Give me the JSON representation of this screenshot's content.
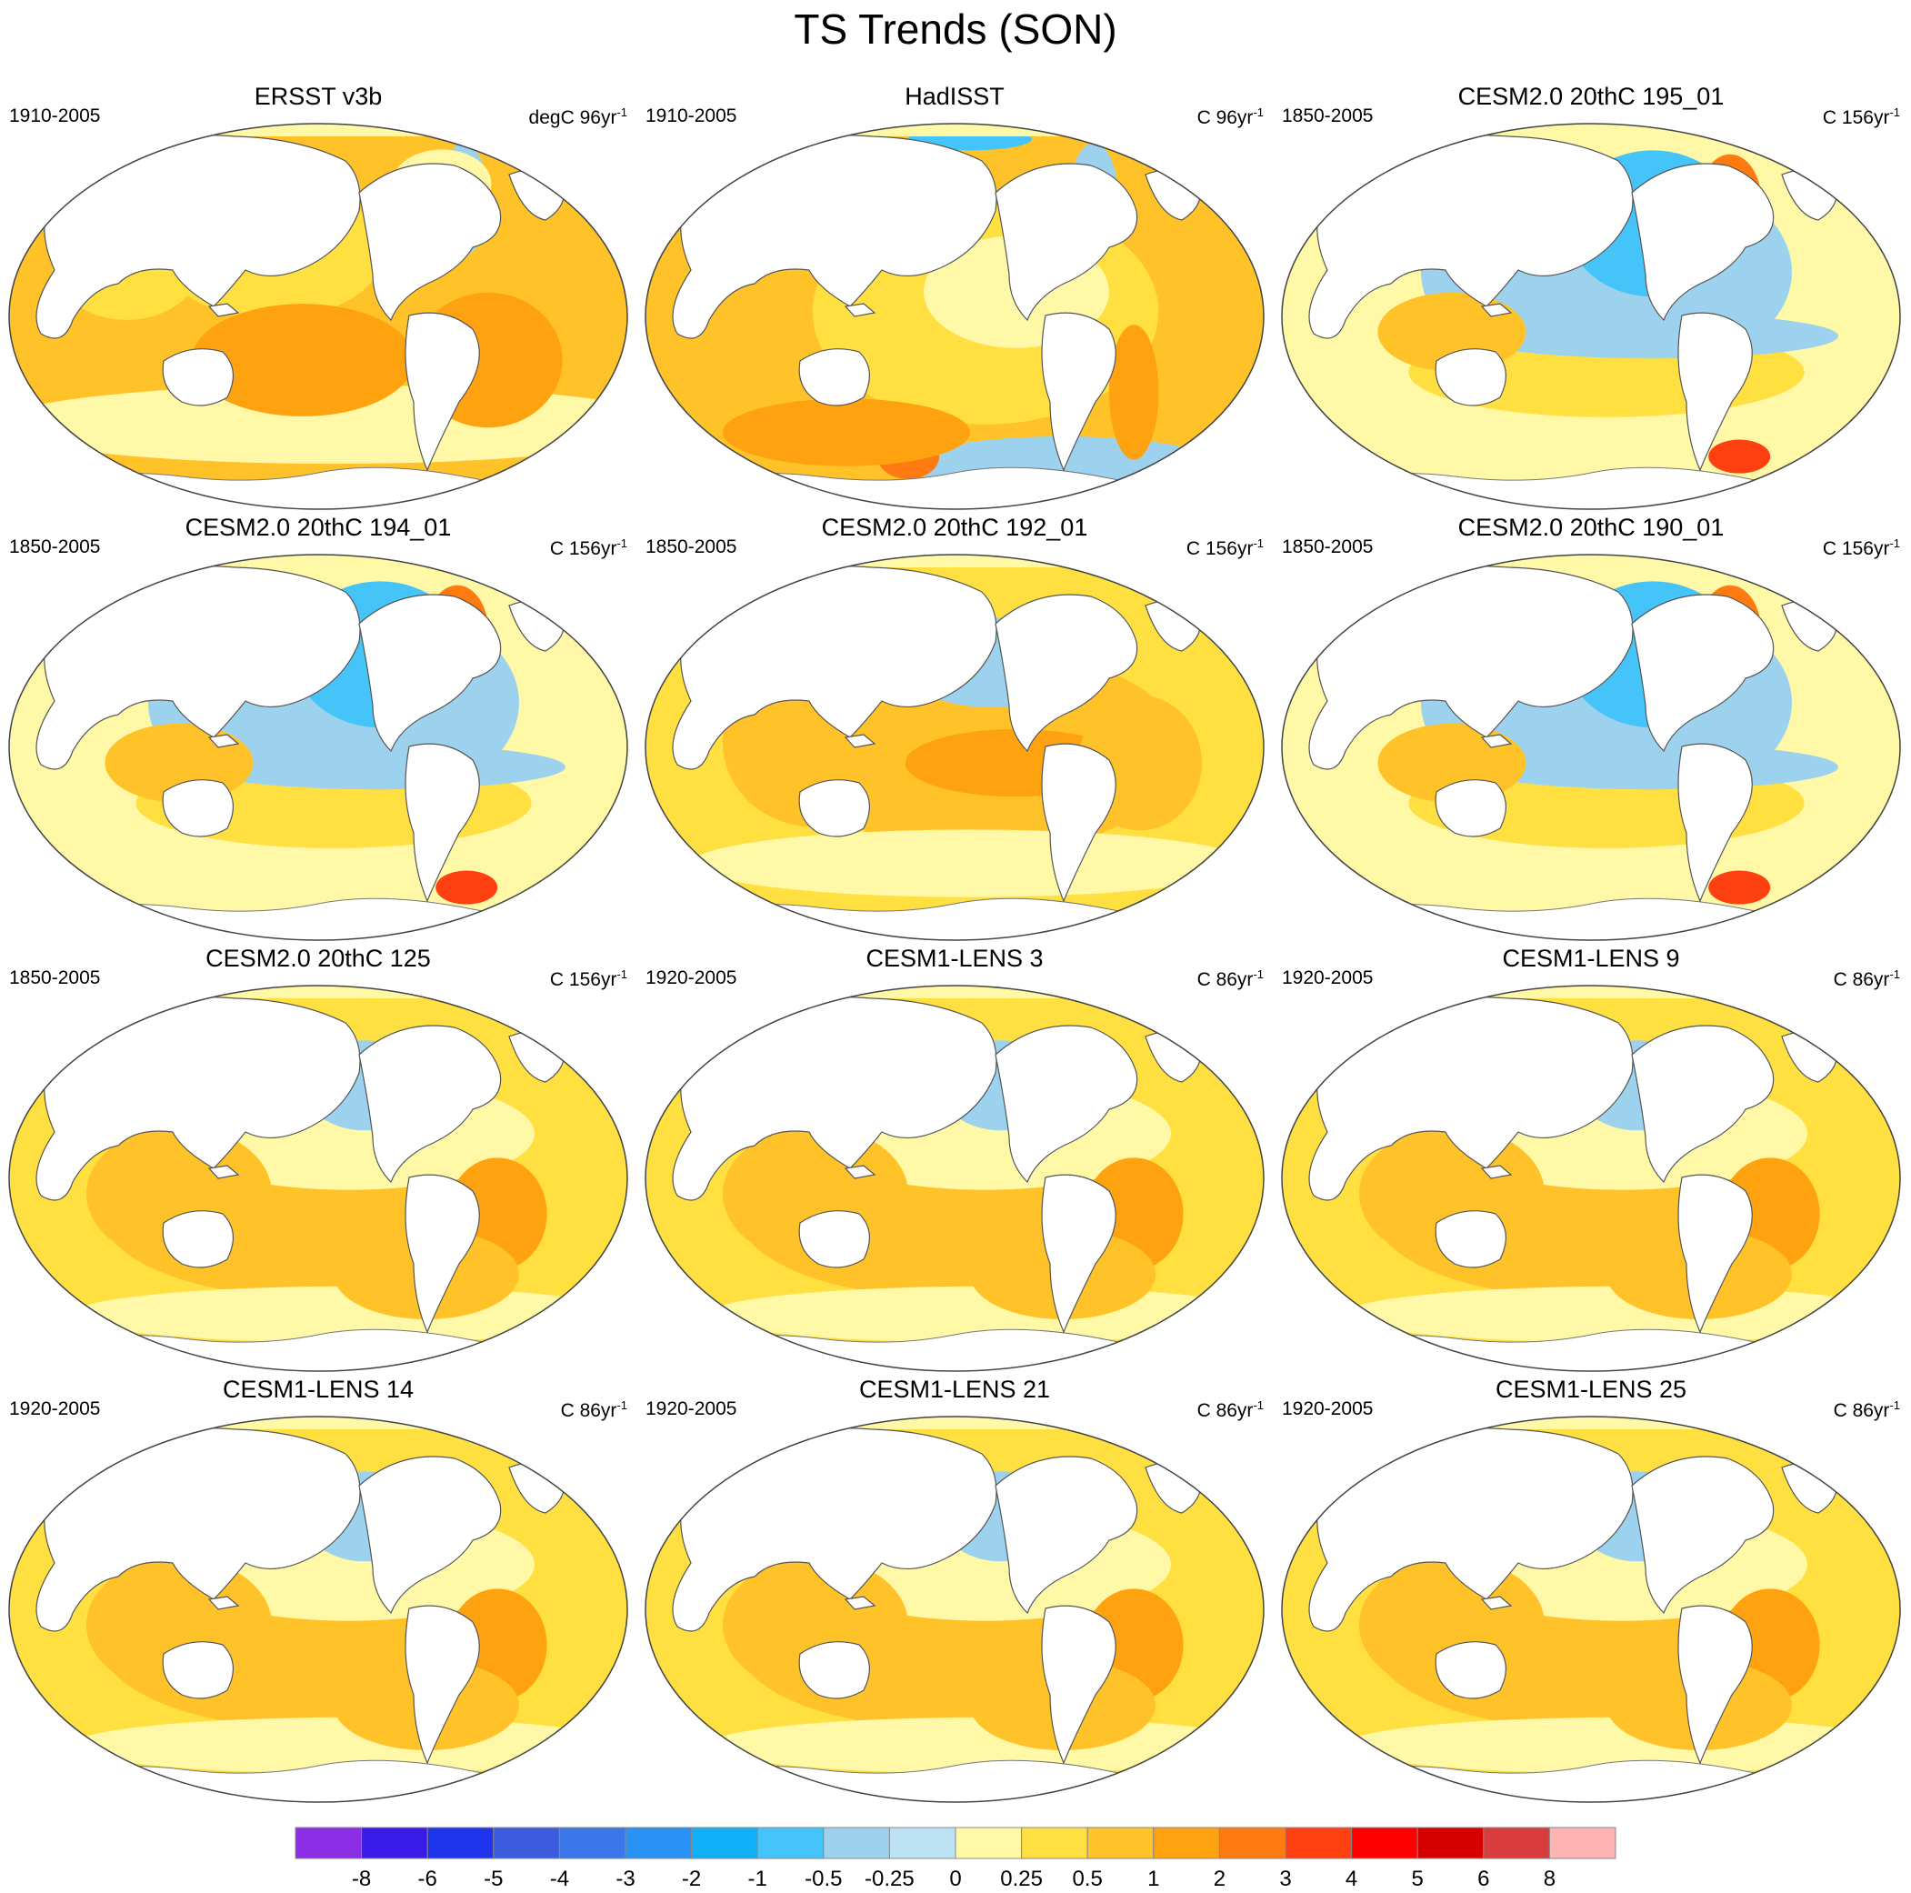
{
  "title": "TS Trends (SON)",
  "panels": [
    {
      "title": "ERSST v3b",
      "period": "1910-2005",
      "units": "degC 96yr",
      "units_exp": "-1",
      "scheme": "ersst"
    },
    {
      "title": "HadISST",
      "period": "1910-2005",
      "units": "C 96yr",
      "units_exp": "-1",
      "scheme": "hadisst"
    },
    {
      "title": "CESM2.0 20thC 195_01",
      "period": "1850-2005",
      "units": "C 156yr",
      "units_exp": "-1",
      "scheme": "cold"
    },
    {
      "title": "CESM2.0 20thC 194_01",
      "period": "1850-2005",
      "units": "C 156yr",
      "units_exp": "-1",
      "scheme": "cold"
    },
    {
      "title": "CESM2.0 20thC 192_01",
      "period": "1850-2005",
      "units": "C 156yr",
      "units_exp": "-1",
      "scheme": "warm"
    },
    {
      "title": "CESM2.0 20thC 190_01",
      "period": "1850-2005",
      "units": "C 156yr",
      "units_exp": "-1",
      "scheme": "cold"
    },
    {
      "title": "CESM2.0 20thC 125",
      "period": "1850-2005",
      "units": "C 156yr",
      "units_exp": "-1",
      "scheme": "mixed"
    },
    {
      "title": "CESM1-LENS 3",
      "period": "1920-2005",
      "units": "C 86yr",
      "units_exp": "-1",
      "scheme": "mixed"
    },
    {
      "title": "CESM1-LENS 9",
      "period": "1920-2005",
      "units": "C 86yr",
      "units_exp": "-1",
      "scheme": "mixed"
    },
    {
      "title": "CESM1-LENS 14",
      "period": "1920-2005",
      "units": "C 86yr",
      "units_exp": "-1",
      "scheme": "mixed"
    },
    {
      "title": "CESM1-LENS 21",
      "period": "1920-2005",
      "units": "C 86yr",
      "units_exp": "-1",
      "scheme": "mixed"
    },
    {
      "title": "CESM1-LENS 25",
      "period": "1920-2005",
      "units": "C 86yr",
      "units_exp": "-1",
      "scheme": "mixed"
    }
  ],
  "colorbar": {
    "colors": [
      "#8b2ee6",
      "#3a1ae6",
      "#1e35ec",
      "#3c5ce0",
      "#3a78ea",
      "#2a92f4",
      "#10b0f8",
      "#44c4f8",
      "#9cd2ee",
      "#bde2f4",
      "#fff8a6",
      "#ffe040",
      "#ffc228",
      "#ffa210",
      "#ff7a10",
      "#ff4010",
      "#ff0000",
      "#d60000",
      "#d83c3c",
      "#ffb4b4"
    ],
    "labels": [
      "-8",
      "-6",
      "-5",
      "-4",
      "-3",
      "-2",
      "-1",
      "-0.5",
      "-0.25",
      "0",
      "0.25",
      "0.5",
      "1",
      "2",
      "3",
      "4",
      "5",
      "6",
      "8"
    ]
  }
}
